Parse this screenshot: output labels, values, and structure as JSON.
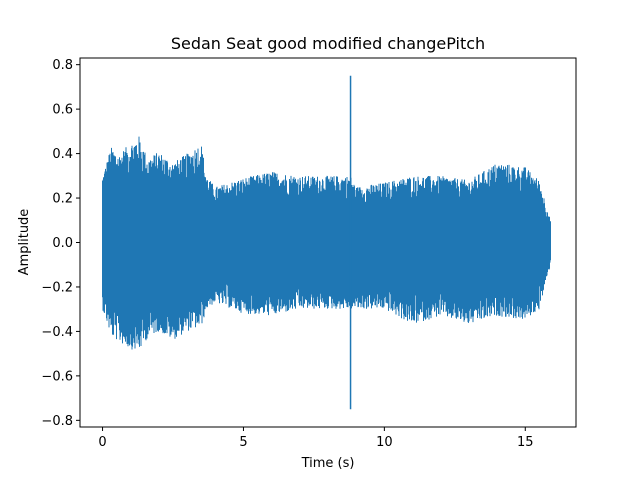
{
  "chart_data": {
    "type": "line",
    "title": "Sedan Seat good modified changePitch",
    "xlabel": "Time (s)",
    "ylabel": "Amplitude",
    "xlim": [
      -0.8,
      16.8
    ],
    "ylim": [
      -0.83,
      0.83
    ],
    "x_ticks": [
      0,
      5,
      10,
      15
    ],
    "x_tick_labels": [
      "0",
      "5",
      "10",
      "15"
    ],
    "y_ticks": [
      -0.8,
      -0.6,
      -0.4,
      -0.2,
      0.0,
      0.2,
      0.4,
      0.6,
      0.8
    ],
    "y_tick_labels": [
      "−0.8",
      "−0.6",
      "−0.4",
      "−0.2",
      "0.0",
      "0.2",
      "0.4",
      "0.6",
      "0.8"
    ],
    "grid": false,
    "legend": "none",
    "series": [
      {
        "color": "#1f77b4",
        "x_range": [
          0,
          15.9
        ],
        "envelope": {
          "t": [
            0,
            0.3,
            0.6,
            1.0,
            1.3,
            1.6,
            2.0,
            2.5,
            3.0,
            3.5,
            3.7,
            4.0,
            5.0,
            6.0,
            7.0,
            8.0,
            8.8,
            9.0,
            10.0,
            11.0,
            12.0,
            13.0,
            14.0,
            15.0,
            15.5,
            15.9
          ],
          "max": [
            0.3,
            0.43,
            0.4,
            0.45,
            0.48,
            0.38,
            0.41,
            0.36,
            0.4,
            0.45,
            0.3,
            0.25,
            0.29,
            0.32,
            0.3,
            0.3,
            0.3,
            0.25,
            0.27,
            0.3,
            0.3,
            0.28,
            0.36,
            0.34,
            0.28,
            0.1
          ],
          "min": [
            -0.3,
            -0.42,
            -0.45,
            -0.48,
            -0.49,
            -0.43,
            -0.4,
            -0.44,
            -0.4,
            -0.38,
            -0.3,
            -0.27,
            -0.32,
            -0.33,
            -0.3,
            -0.3,
            -0.3,
            -0.3,
            -0.3,
            -0.37,
            -0.33,
            -0.37,
            -0.33,
            -0.35,
            -0.3,
            -0.1
          ]
        },
        "spikes": [
          {
            "t": 8.8,
            "max": 0.75,
            "min": -0.75
          }
        ]
      }
    ]
  }
}
